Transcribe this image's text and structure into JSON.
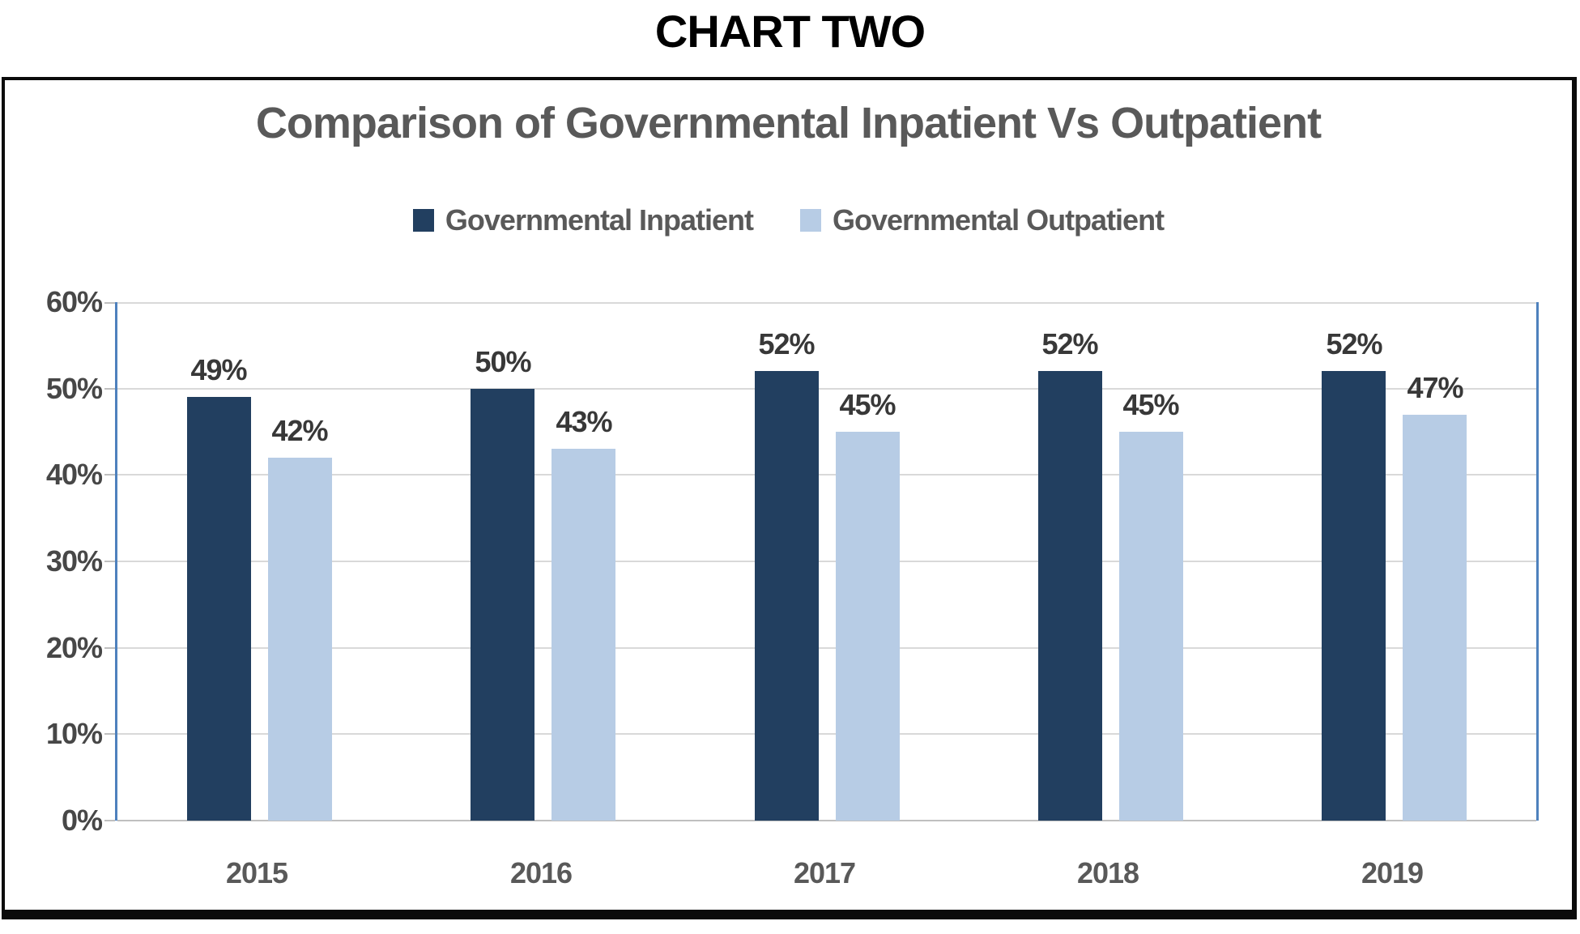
{
  "page_title": "CHART TWO",
  "colors": {
    "inpatient_bar": "#223F60",
    "outpatient_bar": "#B7CCE5",
    "axis_line": "#4E81BD",
    "gridline": "#D9D9D9",
    "baseline": "#BFBFBF",
    "title_text": "#595959",
    "label_text": "#383838",
    "frame_border": "#0B0B0B"
  },
  "chart_data": {
    "type": "bar",
    "title": "Comparison of Governmental Inpatient Vs Outpatient",
    "xlabel": "",
    "ylabel": "",
    "categories": [
      "2015",
      "2016",
      "2017",
      "2018",
      "2019"
    ],
    "series": [
      {
        "name": "Governmental Inpatient",
        "color": "#223F60",
        "values": [
          49,
          50,
          52,
          52,
          52
        ],
        "labels": [
          "49%",
          "50%",
          "52%",
          "52%",
          "52%"
        ]
      },
      {
        "name": "Governmental Outpatient",
        "color": "#B7CCE5",
        "values": [
          42,
          43,
          45,
          45,
          47
        ],
        "labels": [
          "42%",
          "43%",
          "45%",
          "45%",
          "47%"
        ]
      }
    ],
    "ylim": [
      0,
      60
    ],
    "yticks_top_to_bottom": [
      "60%",
      "50%",
      "40%",
      "30%",
      "20%",
      "10%",
      "0%"
    ],
    "grid": true,
    "legend_position": "top"
  }
}
